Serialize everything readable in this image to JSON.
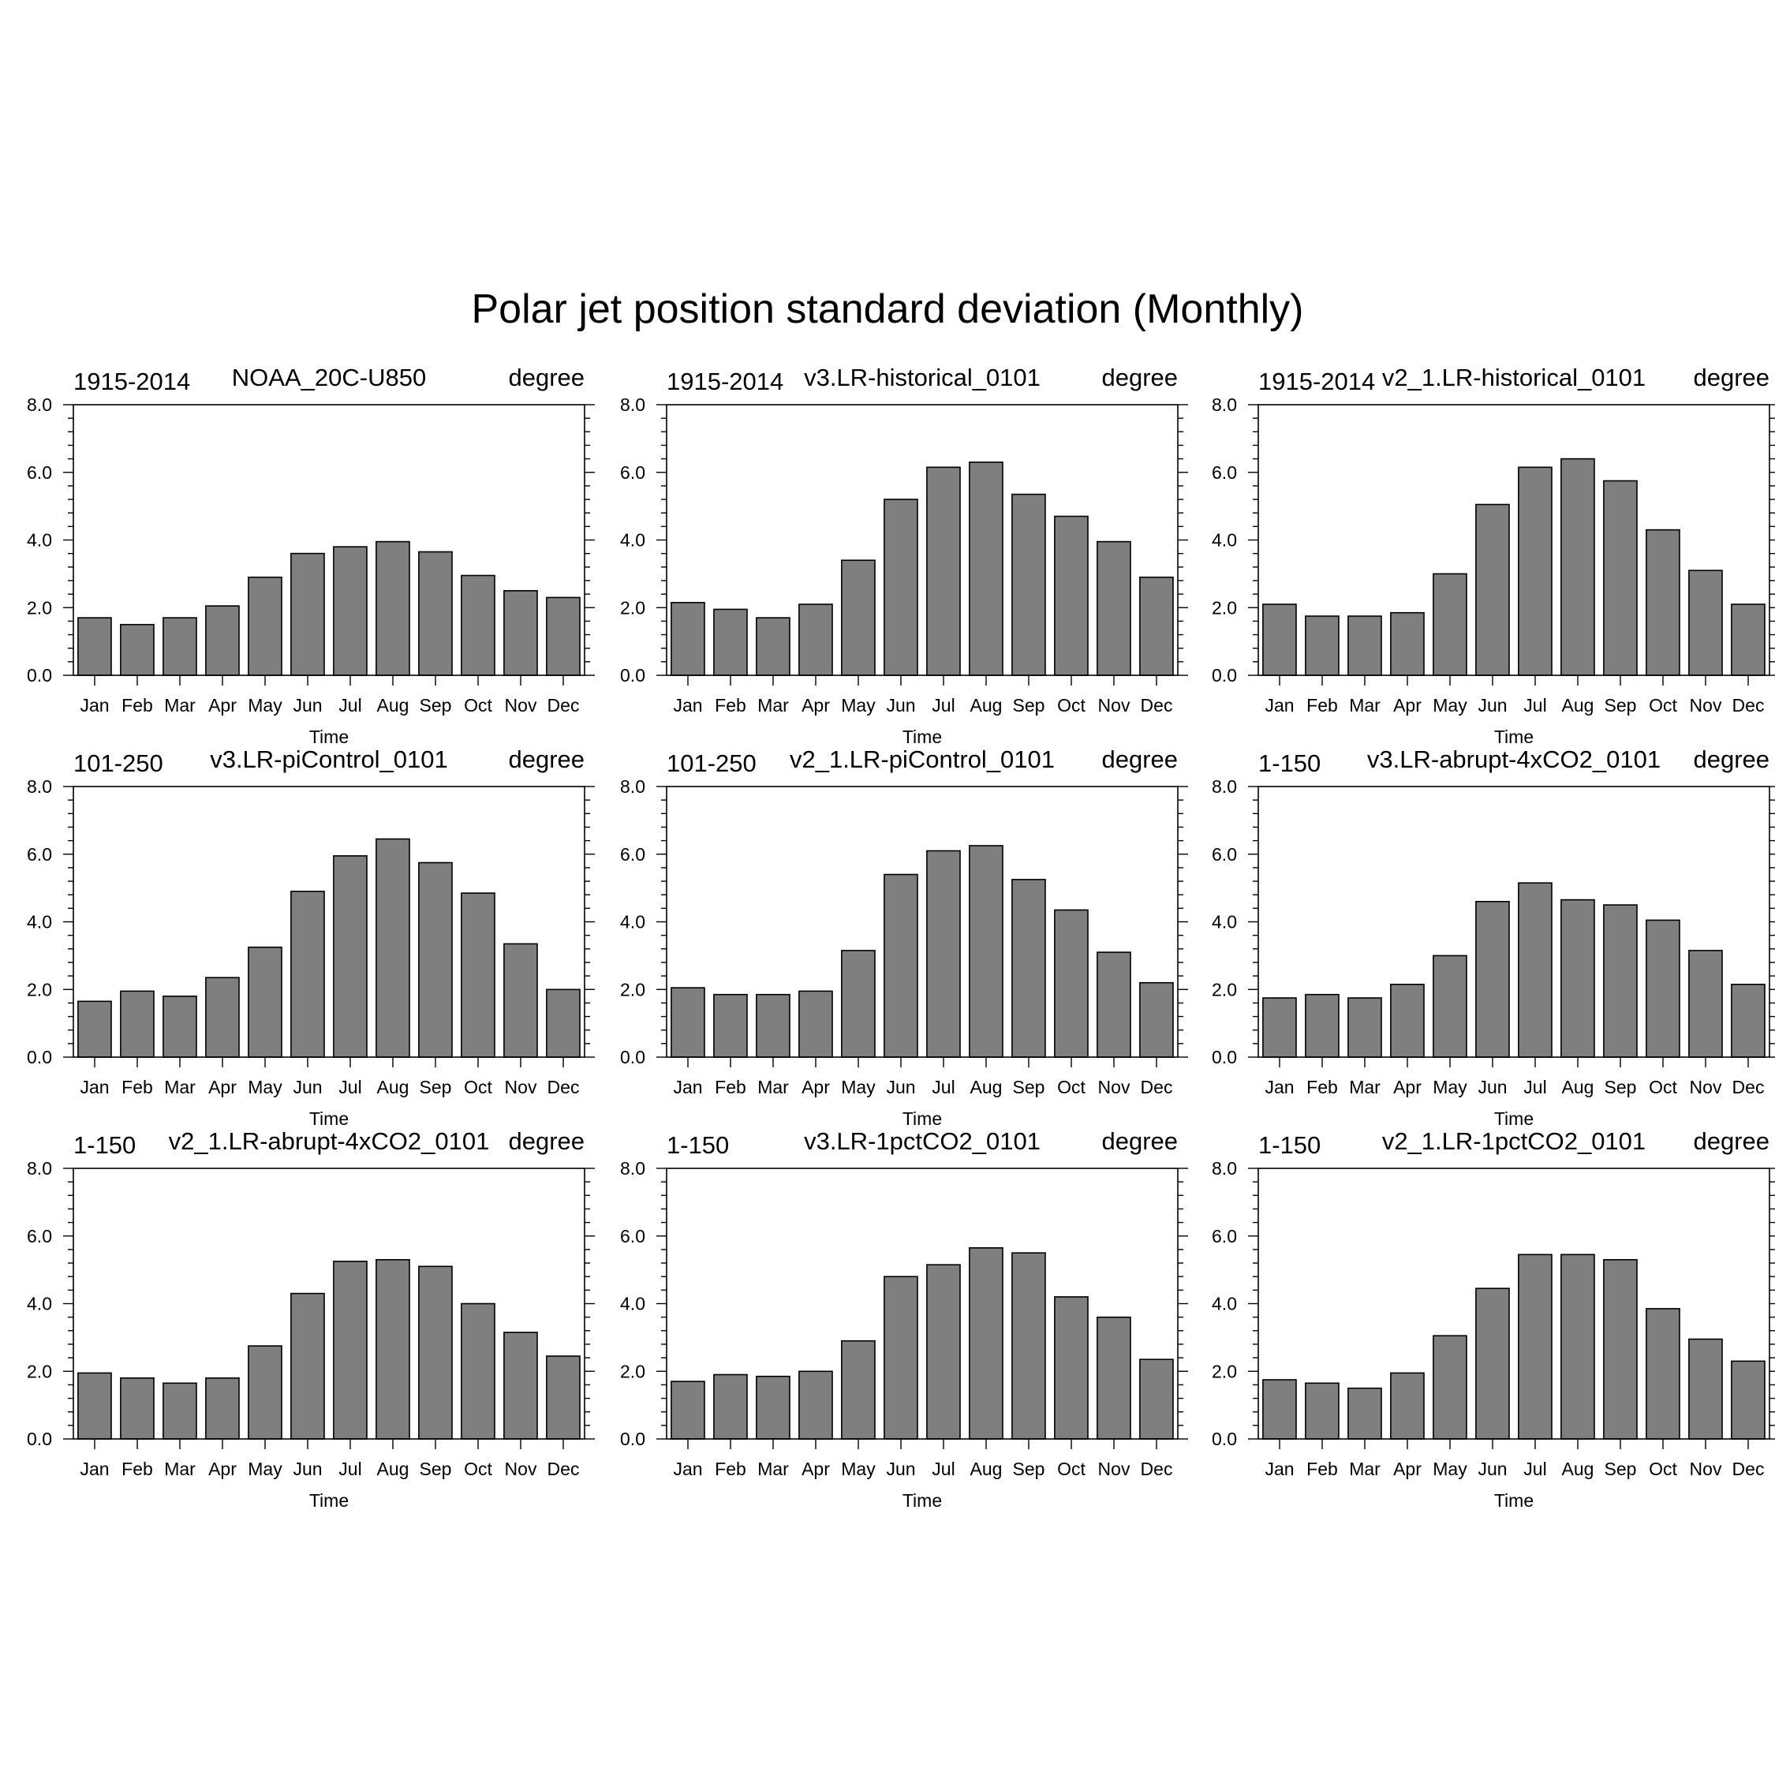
{
  "title": "Polar jet position standard deviation (Monthly)",
  "chart_data": [
    {
      "type": "bar",
      "left_label": "1915-2014",
      "title": "NOAA_20C-U850",
      "right_label": "degree",
      "xlabel": "Time",
      "categories": [
        "Jan",
        "Feb",
        "Mar",
        "Apr",
        "May",
        "Jun",
        "Jul",
        "Aug",
        "Sep",
        "Oct",
        "Nov",
        "Dec"
      ],
      "values": [
        1.7,
        1.5,
        1.7,
        2.05,
        2.9,
        3.6,
        3.8,
        3.95,
        3.65,
        2.95,
        2.5,
        2.3
      ],
      "ylim": [
        0,
        8
      ],
      "yticks": [
        "0.0",
        "2.0",
        "4.0",
        "6.0",
        "8.0"
      ],
      "grid": false
    },
    {
      "type": "bar",
      "left_label": "1915-2014",
      "title": "v3.LR-historical_0101",
      "right_label": "degree",
      "xlabel": "Time",
      "categories": [
        "Jan",
        "Feb",
        "Mar",
        "Apr",
        "May",
        "Jun",
        "Jul",
        "Aug",
        "Sep",
        "Oct",
        "Nov",
        "Dec"
      ],
      "values": [
        2.15,
        1.95,
        1.7,
        2.1,
        3.4,
        5.2,
        6.15,
        6.3,
        5.35,
        4.7,
        3.95,
        2.9
      ],
      "ylim": [
        0,
        8
      ],
      "yticks": [
        "0.0",
        "2.0",
        "4.0",
        "6.0",
        "8.0"
      ],
      "grid": false
    },
    {
      "type": "bar",
      "left_label": "1915-2014",
      "title": "v2_1.LR-historical_0101",
      "right_label": "degree",
      "xlabel": "Time",
      "categories": [
        "Jan",
        "Feb",
        "Mar",
        "Apr",
        "May",
        "Jun",
        "Jul",
        "Aug",
        "Sep",
        "Oct",
        "Nov",
        "Dec"
      ],
      "values": [
        2.1,
        1.75,
        1.75,
        1.85,
        3.0,
        5.05,
        6.15,
        6.4,
        5.75,
        4.3,
        3.1,
        2.1
      ],
      "ylim": [
        0,
        8
      ],
      "yticks": [
        "0.0",
        "2.0",
        "4.0",
        "6.0",
        "8.0"
      ],
      "grid": false
    },
    {
      "type": "bar",
      "left_label": "101-250",
      "title": "v3.LR-piControl_0101",
      "right_label": "degree",
      "xlabel": "Time",
      "categories": [
        "Jan",
        "Feb",
        "Mar",
        "Apr",
        "May",
        "Jun",
        "Jul",
        "Aug",
        "Sep",
        "Oct",
        "Nov",
        "Dec"
      ],
      "values": [
        1.65,
        1.95,
        1.8,
        2.35,
        3.25,
        4.9,
        5.95,
        6.45,
        5.75,
        4.85,
        3.35,
        2.0
      ],
      "ylim": [
        0,
        8
      ],
      "yticks": [
        "0.0",
        "2.0",
        "4.0",
        "6.0",
        "8.0"
      ],
      "grid": false
    },
    {
      "type": "bar",
      "left_label": "101-250",
      "title": "v2_1.LR-piControl_0101",
      "right_label": "degree",
      "xlabel": "Time",
      "categories": [
        "Jan",
        "Feb",
        "Mar",
        "Apr",
        "May",
        "Jun",
        "Jul",
        "Aug",
        "Sep",
        "Oct",
        "Nov",
        "Dec"
      ],
      "values": [
        2.05,
        1.85,
        1.85,
        1.95,
        3.15,
        5.4,
        6.1,
        6.25,
        5.25,
        4.35,
        3.1,
        2.2
      ],
      "ylim": [
        0,
        8
      ],
      "yticks": [
        "0.0",
        "2.0",
        "4.0",
        "6.0",
        "8.0"
      ],
      "grid": false
    },
    {
      "type": "bar",
      "left_label": "1-150",
      "title": "v3.LR-abrupt-4xCO2_0101",
      "right_label": "degree",
      "xlabel": "Time",
      "categories": [
        "Jan",
        "Feb",
        "Mar",
        "Apr",
        "May",
        "Jun",
        "Jul",
        "Aug",
        "Sep",
        "Oct",
        "Nov",
        "Dec"
      ],
      "values": [
        1.75,
        1.85,
        1.75,
        2.15,
        3.0,
        4.6,
        5.15,
        4.65,
        4.5,
        4.05,
        3.15,
        2.15
      ],
      "ylim": [
        0,
        8
      ],
      "yticks": [
        "0.0",
        "2.0",
        "4.0",
        "6.0",
        "8.0"
      ],
      "grid": false
    },
    {
      "type": "bar",
      "left_label": "1-150",
      "title": "v2_1.LR-abrupt-4xCO2_0101",
      "right_label": "degree",
      "xlabel": "Time",
      "categories": [
        "Jan",
        "Feb",
        "Mar",
        "Apr",
        "May",
        "Jun",
        "Jul",
        "Aug",
        "Sep",
        "Oct",
        "Nov",
        "Dec"
      ],
      "values": [
        1.95,
        1.8,
        1.65,
        1.8,
        2.75,
        4.3,
        5.25,
        5.3,
        5.1,
        4.0,
        3.15,
        2.45
      ],
      "ylim": [
        0,
        8
      ],
      "yticks": [
        "0.0",
        "2.0",
        "4.0",
        "6.0",
        "8.0"
      ],
      "grid": false
    },
    {
      "type": "bar",
      "left_label": "1-150",
      "title": "v3.LR-1pctCO2_0101",
      "right_label": "degree",
      "xlabel": "Time",
      "categories": [
        "Jan",
        "Feb",
        "Mar",
        "Apr",
        "May",
        "Jun",
        "Jul",
        "Aug",
        "Sep",
        "Oct",
        "Nov",
        "Dec"
      ],
      "values": [
        1.7,
        1.9,
        1.85,
        2.0,
        2.9,
        4.8,
        5.15,
        5.65,
        5.5,
        4.2,
        3.6,
        2.35
      ],
      "ylim": [
        0,
        8
      ],
      "yticks": [
        "0.0",
        "2.0",
        "4.0",
        "6.0",
        "8.0"
      ],
      "grid": false
    },
    {
      "type": "bar",
      "left_label": "1-150",
      "title": "v2_1.LR-1pctCO2_0101",
      "right_label": "degree",
      "xlabel": "Time",
      "categories": [
        "Jan",
        "Feb",
        "Mar",
        "Apr",
        "May",
        "Jun",
        "Jul",
        "Aug",
        "Sep",
        "Oct",
        "Nov",
        "Dec"
      ],
      "values": [
        1.75,
        1.65,
        1.5,
        1.95,
        3.05,
        4.45,
        5.45,
        5.45,
        5.3,
        3.85,
        2.95,
        2.3
      ],
      "ylim": [
        0,
        8
      ],
      "yticks": [
        "0.0",
        "2.0",
        "4.0",
        "6.0",
        "8.0"
      ],
      "grid": false
    }
  ],
  "colors": {
    "bar_fill": "#7f7f7f",
    "bar_stroke": "#000000",
    "axis": "#000000",
    "background": "#ffffff"
  }
}
